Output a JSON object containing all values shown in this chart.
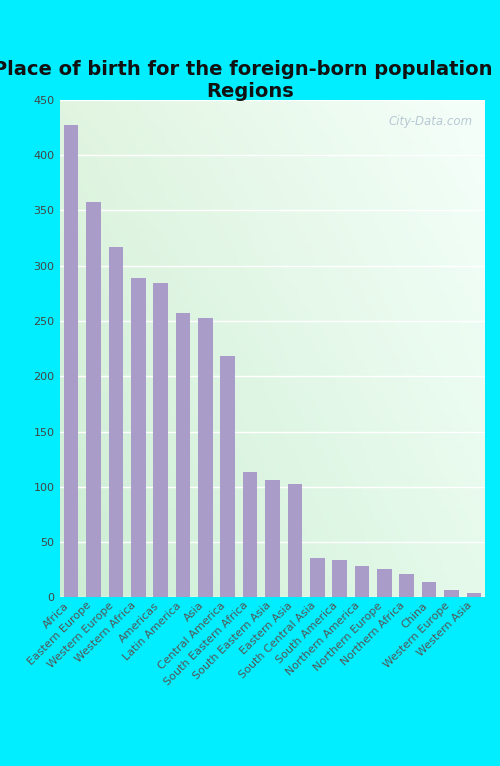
{
  "title": "Place of birth for the foreign-born population -\nRegions",
  "categories": [
    "Africa",
    "Eastern Europe",
    "Western Europe",
    "Western Africa",
    "Americas",
    "Latin America",
    "Asia",
    "Central America",
    "South Eastern Africa",
    "South Eastern Asia",
    "Eastern Asia",
    "South Central Asia",
    "South America",
    "Northern America",
    "Northern Europe",
    "Northern Africa",
    "China",
    "Western Europe",
    "Western Asia"
  ],
  "values": [
    427,
    357,
    317,
    289,
    284,
    257,
    253,
    218,
    113,
    106,
    103,
    36,
    34,
    28,
    26,
    21,
    14,
    7,
    4
  ],
  "bar_color": "#a99cc8",
  "bg_outer": "#00eeff",
  "bg_plot_tl": "#d8eed8",
  "bg_plot_tr": "#eaf5f0",
  "bg_plot_br": "#f0faf5",
  "bg_plot_bl": "#c8e8d0",
  "ylim": [
    0,
    450
  ],
  "yticks": [
    0,
    50,
    100,
    150,
    200,
    250,
    300,
    350,
    400,
    450
  ],
  "title_fontsize": 14,
  "tick_fontsize": 8,
  "title_color": "#111111",
  "ytick_color": "#444444",
  "xtick_color": "#555555",
  "watermark_color": "#aabbcc",
  "watermark_alpha": 0.8,
  "grid_color": "#ffffff",
  "grid_linewidth": 1.0
}
